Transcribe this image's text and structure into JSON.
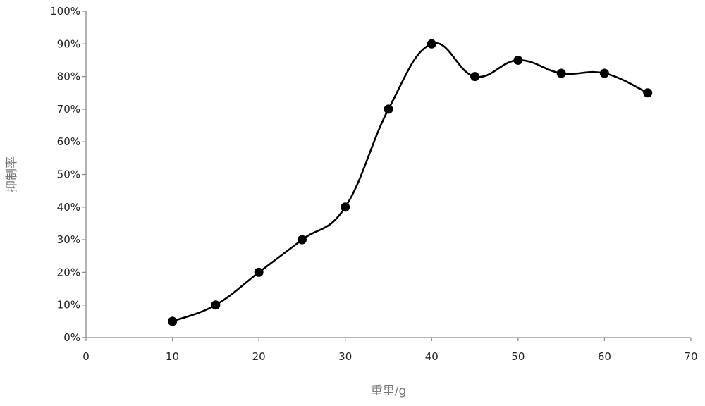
{
  "chart_data": {
    "type": "line",
    "smooth": true,
    "xlabel": "重里/g",
    "ylabel": "抑制率",
    "xlim": [
      0,
      70
    ],
    "ylim": [
      0,
      100
    ],
    "x_ticks": [
      0,
      10,
      20,
      30,
      40,
      50,
      60,
      70
    ],
    "x_tick_labels": [
      "0",
      "10",
      "20",
      "30",
      "40",
      "50",
      "60",
      "70"
    ],
    "y_ticks": [
      0,
      10,
      20,
      30,
      40,
      50,
      60,
      70,
      80,
      90,
      100
    ],
    "y_tick_labels": [
      "0%",
      "10%",
      "20%",
      "30%",
      "40%",
      "50%",
      "60%",
      "70%",
      "80%",
      "90%",
      "100%"
    ],
    "grid": false,
    "series": [
      {
        "x": [
          10,
          15,
          20,
          25,
          30,
          35,
          40,
          45,
          50,
          55,
          60,
          65
        ],
        "y": [
          5,
          10,
          20,
          30,
          40,
          70,
          90,
          80,
          85,
          81,
          81,
          75
        ],
        "color": "#000000",
        "marker": "circle"
      }
    ]
  }
}
